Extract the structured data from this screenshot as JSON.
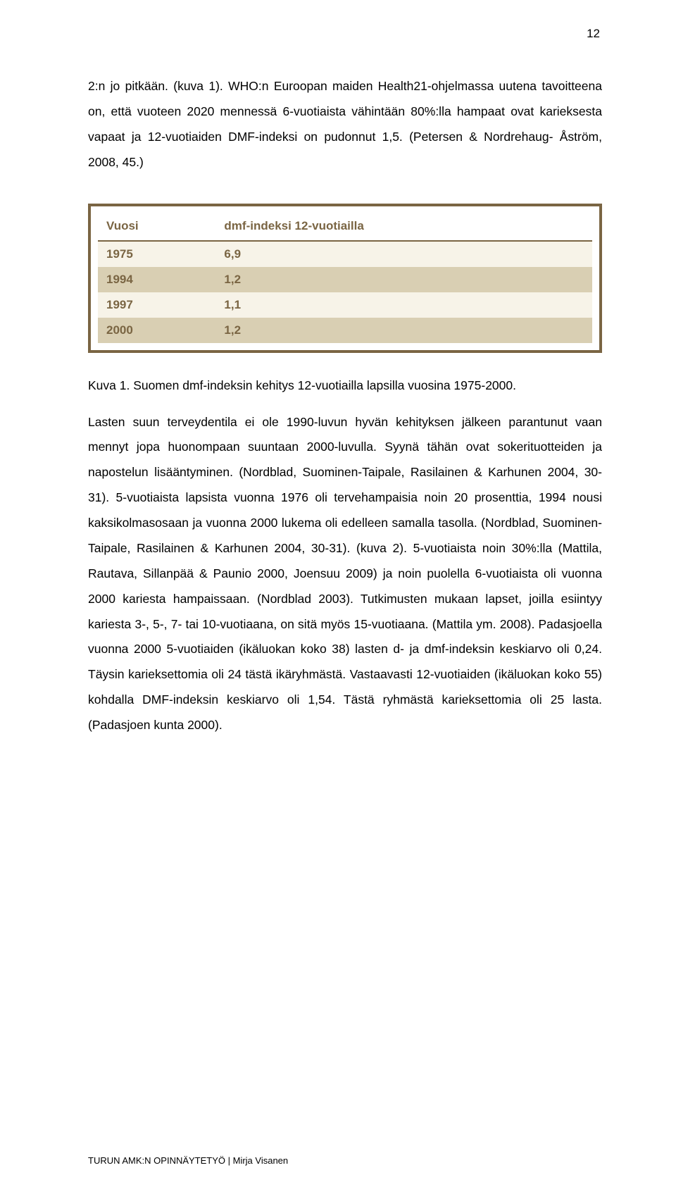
{
  "page_number": "12",
  "para1": "2:n jo pitkään. (kuva 1). WHO:n Euroopan maiden Health21-ohjelmassa uutena tavoitteena on, että vuoteen 2020 mennessä 6-vuotiaista vähintään 80%:lla hampaat ovat karieksesta vapaat ja 12-vuotiaiden DMF-indeksi on pudonnut 1,5. (Petersen & Nordrehaug- Åström, 2008, 45.)",
  "table": {
    "border_color": "#7a6543",
    "header_bg": "#ffffff",
    "row_bg": "#f7f3e8",
    "alt_row_bg": "#d9cfb3",
    "text_color": "#7a6543",
    "fontsize": 17,
    "columns": [
      "Vuosi",
      "dmf-indeksi 12-vuotiailla"
    ],
    "rows": [
      {
        "c0": "1975",
        "c1": "6,9",
        "alt": false
      },
      {
        "c0": "1994",
        "c1": "1,2",
        "alt": true
      },
      {
        "c0": "1997",
        "c1": "1,1",
        "alt": false
      },
      {
        "c0": "2000",
        "c1": "1,2",
        "alt": true
      }
    ]
  },
  "caption": "Kuva 1. Suomen dmf-indeksin kehitys 12-vuotiailla lapsilla vuosina 1975-2000.",
  "para2": "Lasten suun terveydentila ei ole 1990-luvun hyvän kehityksen jälkeen parantunut vaan mennyt jopa huonompaan suuntaan 2000-luvulla. Syynä tähän ovat sokerituotteiden ja napostelun lisääntyminen. (Nordblad, Suominen-Taipale, Rasilainen & Karhunen 2004, 30-31). 5-vuotiaista lapsista vuonna 1976 oli tervehampaisia noin 20 prosenttia, 1994 nousi kaksikolmasosaan ja vuonna 2000 lukema oli edelleen samalla tasolla. (Nordblad, Suominen-Taipale, Rasilainen & Karhunen 2004, 30-31). (kuva 2). 5-vuotiaista noin 30%:lla (Mattila, Rautava, Sillanpää & Paunio 2000, Joensuu 2009) ja noin puolella 6-vuotiaista oli vuonna 2000 kariesta hampaissaan. (Nordblad 2003). Tutkimusten mukaan lapset, joilla esiintyy kariesta 3-, 5-, 7- tai 10-vuotiaana, on sitä myös 15-vuotiaana. (Mattila ym. 2008). Padasjoella vuonna 2000 5-vuotiaiden (ikäluokan koko 38) lasten d- ja dmf-indeksin keskiarvo oli 0,24. Täysin karieksettomia oli 24 tästä ikäryhmästä. Vastaavasti 12-vuotiaiden (ikäluokan koko 55) kohdalla DMF-indeksin keskiarvo oli 1,54. Tästä ryhmästä karieksettomia oli 25 lasta. (Padasjoen kunta 2000).",
  "footer": "TURUN AMK:N OPINNÄYTETYÖ | Mirja Visanen"
}
